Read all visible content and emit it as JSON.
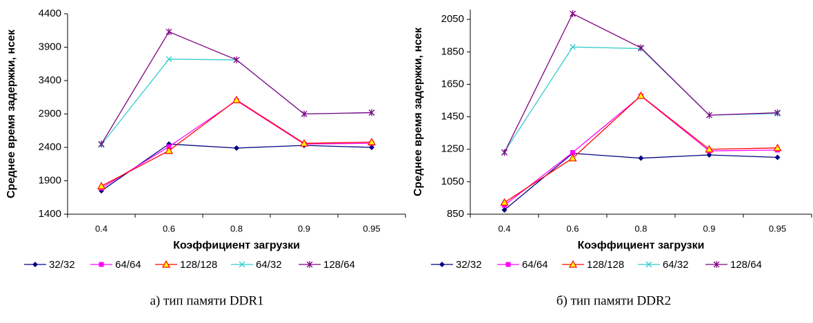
{
  "chart_data": [
    {
      "type": "line",
      "x_label": "Коэффициент загрузки",
      "y_label": "Среднее время задержки, нсек",
      "caption": "а) тип памяти DDR1",
      "categories": [
        "0.4",
        "0.6",
        "0.8",
        "0.9",
        "0.95"
      ],
      "ylim": [
        1400,
        4400
      ],
      "yticks": [
        1400,
        1900,
        2400,
        2900,
        3400,
        3900,
        4400
      ],
      "series": [
        {
          "name": "32/32",
          "color": "#000080",
          "marker": "diamond",
          "values": [
            1750,
            2450,
            2390,
            2430,
            2400
          ]
        },
        {
          "name": "64/64",
          "color": "#ff00ff",
          "marker": "square",
          "values": [
            1790,
            2410,
            3100,
            2450,
            2460
          ]
        },
        {
          "name": "128/128",
          "color": "#ff0000",
          "marker": "triangle",
          "values": [
            1820,
            2350,
            3110,
            2460,
            2480
          ]
        },
        {
          "name": "64/32",
          "color": "#33cccc",
          "marker": "x",
          "values": [
            2440,
            3720,
            3710,
            2900,
            2920
          ]
        },
        {
          "name": "128/64",
          "color": "#800080",
          "marker": "star",
          "values": [
            2450,
            4130,
            3710,
            2900,
            2920
          ]
        }
      ]
    },
    {
      "type": "line",
      "x_label": "Коэффициент загрузки",
      "y_label": "Среднее время задержки, нсек",
      "caption": "б) тип памяти DDR2",
      "categories": [
        "0.4",
        "0.6",
        "0.8",
        "0.9",
        "0.95"
      ],
      "ylim": [
        850,
        2110
      ],
      "yticks": [
        850,
        1050,
        1250,
        1450,
        1650,
        1850,
        2050
      ],
      "series": [
        {
          "name": "32/32",
          "color": "#000080",
          "marker": "diamond",
          "values": [
            876,
            1225,
            1195,
            1215,
            1200
          ]
        },
        {
          "name": "64/64",
          "color": "#ff00ff",
          "marker": "square",
          "values": [
            905,
            1230,
            1578,
            1240,
            1245
          ]
        },
        {
          "name": "128/128",
          "color": "#ff0000",
          "marker": "triangle",
          "values": [
            922,
            1195,
            1580,
            1250,
            1258
          ]
        },
        {
          "name": "64/32",
          "color": "#33cccc",
          "marker": "x",
          "values": [
            1233,
            1880,
            1870,
            1460,
            1470
          ]
        },
        {
          "name": "128/64",
          "color": "#800080",
          "marker": "star",
          "values": [
            1230,
            2085,
            1875,
            1460,
            1475
          ]
        }
      ]
    }
  ]
}
